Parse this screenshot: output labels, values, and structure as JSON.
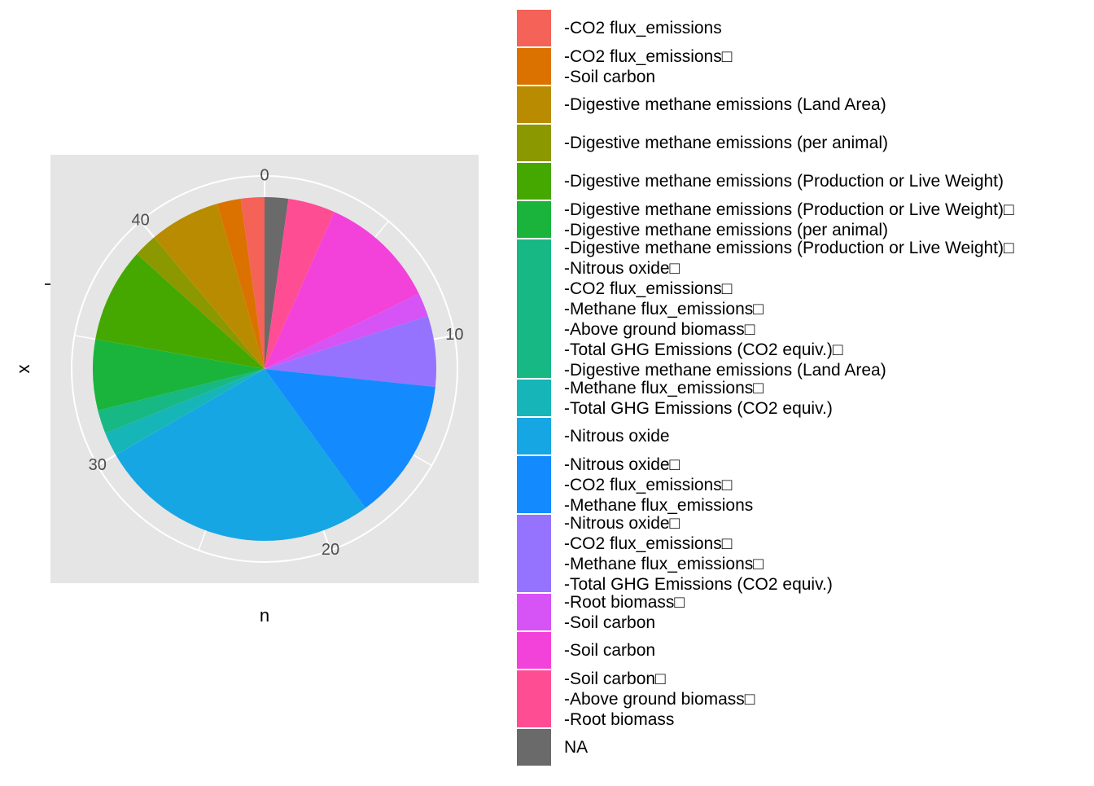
{
  "chart_data": {
    "type": "pie",
    "x_label": "n",
    "y_label": "x",
    "categories": [
      "-CO2 flux_emissions",
      "-CO2 flux_emissions□\n-Soil carbon",
      "-Digestive methane emissions (Land Area)",
      "-Digestive methane emissions (per animal)",
      "-Digestive methane emissions (Production or Live Weight)",
      "-Digestive methane emissions (Production or Live Weight)□\n-Digestive methane emissions (per animal)",
      "-Digestive methane emissions (Production or Live Weight)□\n-Nitrous oxide□\n-CO2 flux_emissions□\n-Methane flux_emissions□\n-Above ground biomass□\n-Total GHG Emissions (CO2 equiv.)□\n-Digestive methane emissions (Land Area)",
      "-Methane flux_emissions□\n-Total GHG Emissions (CO2 equiv.)",
      "-Nitrous oxide",
      "-Nitrous oxide□\n-CO2 flux_emissions□\n-Methane flux_emissions",
      "-Nitrous oxide□\n-CO2 flux_emissions□\n-Methane flux_emissions□\n-Total GHG Emissions (CO2 equiv.)",
      "-Root biomass□\n-Soil carbon",
      "-Soil carbon",
      "-Soil carbon□\n-Above ground biomass□\n-Root biomass",
      "NA"
    ],
    "values": [
      1,
      1,
      3,
      1,
      4,
      3,
      1,
      1,
      12,
      6,
      3,
      1,
      5,
      2,
      1
    ],
    "colors": [
      "#F46258",
      "#DB7200",
      "#B98B00",
      "#8C9800",
      "#45A800",
      "#1AB43C",
      "#18B884",
      "#16B5B8",
      "#16A6E3",
      "#138BFF",
      "#9673FF",
      "#D653F6",
      "#F342D9",
      "#FF4D94",
      "#6A6A6A"
    ],
    "ylim": [
      0,
      45
    ],
    "yticks": [
      0,
      10,
      20,
      30,
      40
    ],
    "minor_ticks": [
      5,
      15,
      25,
      35
    ]
  }
}
